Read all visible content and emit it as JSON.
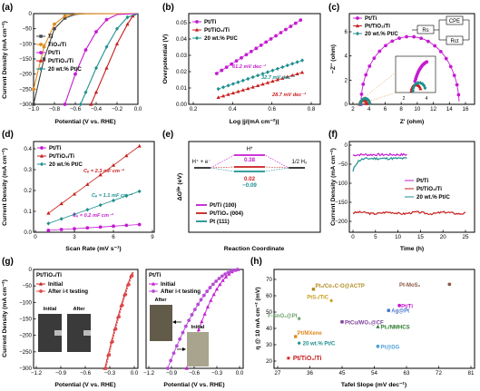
{
  "colors": {
    "pt": "#c51bd1",
    "pttio2": "#c81e1e",
    "ptc": "#1f8f8f",
    "ti": "#444444",
    "tio2": "#e08a1e",
    "ptri": "#b84ad6"
  },
  "panels": {
    "a": {
      "label": "(a)",
      "xlabel": "Potential (V vs. RHE)",
      "ylabel": "Current Density (mA cm⁻²)",
      "xticks": [
        "−1.0",
        "−0.8",
        "−0.6",
        "−0.4",
        "−0.2",
        "0.0"
      ],
      "yticks": [
        "0",
        "−50",
        "−100",
        "−150",
        "−200",
        "−250",
        "−300"
      ],
      "legend": [
        "Ti",
        "TiO₂/Ti",
        "Pt/Ti",
        "Pt/TiO₂/Ti",
        "20 wt.% Pt/C"
      ]
    },
    "b": {
      "label": "(b)",
      "xlabel": "Log |j/(mA cm⁻²)|",
      "ylabel": "Overpotential (V)",
      "xticks": [
        "0.2",
        "0.4",
        "0.6",
        "0.8"
      ],
      "yticks": [
        "0.00",
        "0.01",
        "0.02",
        "0.03",
        "0.04",
        "0.05"
      ],
      "legend": [
        "Pt/Ti",
        "Pt/TiO₂/Ti",
        "20 wt.% Pt/C"
      ],
      "annotations": [
        "61.2 mV dec⁻¹",
        "32.7 mV dec⁻¹",
        "28.7 mV dec⁻¹"
      ]
    },
    "c": {
      "label": "(c)",
      "xlabel": "Z' (ohm)",
      "ylabel": "−Z'' (ohm)",
      "xticks": [
        "2",
        "4",
        "6",
        "8",
        "10",
        "12",
        "14",
        "16"
      ],
      "yticks": [
        "0",
        "2",
        "4",
        "6"
      ],
      "legend": [
        "Pt/Ti",
        "Pt/TiO₂/Ti",
        "20 wt.% Pt/C"
      ],
      "circuit": [
        "Rs",
        "CPE",
        "Rct"
      ],
      "inset_xticks": [
        "2",
        "4"
      ]
    },
    "d": {
      "label": "(d)",
      "xlabel": "Scan Rate (mV s⁻¹)",
      "ylabel": "Current Density (mA cm⁻²)",
      "xticks": [
        "0",
        "3",
        "6",
        "9"
      ],
      "yticks": [
        "0.0",
        "0.1",
        "0.2",
        "0.3",
        "0.4"
      ],
      "legend": [
        "Pt/Ti",
        "Pt/TiO₂/Ti",
        "20 wt.% Pt/C"
      ],
      "annotations": [
        "Cₑ = 2.3 mF cm⁻²",
        "Cₑ = 1.1 mF cm⁻²",
        "Cₑ = 0.2 mF cm⁻²"
      ]
    },
    "e": {
      "label": "(e)",
      "xlabel": "Reaction Coordinate",
      "ylabel": "ΔGᴴ* (eV)",
      "labels": {
        "hplus": "H⁺ + e⁻",
        "hstar": "H*",
        "half": "1/2 H₂"
      },
      "values": [
        "0.38",
        "0.02",
        "−0.09"
      ],
      "legend": [
        "Pt/Ti (100)",
        "Pt/TiO₂ (004)",
        "Pt (111)"
      ]
    },
    "f": {
      "label": "(f)",
      "xlabel": "Time (h)",
      "ylabel": "Current Density (mA cm⁻²)",
      "xticks": [
        "0",
        "5",
        "10",
        "15",
        "20",
        "25"
      ],
      "yticks": [
        "0",
        "−50",
        "−100",
        "−150",
        "−200"
      ],
      "legend": [
        "Pt/Ti",
        "Pt/TiO₂/Ti",
        "20 wt.% Pt/C"
      ]
    },
    "g": {
      "label": "(g)",
      "xlabel": "Potential (V vs. RHE)",
      "ylabel": "Current Density (mA cm⁻²)",
      "left": {
        "title": "Pt/TiO₂/Ti",
        "legend": [
          "Initial",
          "After i-t testing"
        ],
        "photos": [
          "Initial",
          "After"
        ],
        "xticks": [
          "−1.2",
          "−0.9",
          "−0.6",
          "−0.3",
          "0.0"
        ]
      },
      "right": {
        "title": "Pt/Ti",
        "legend": [
          "Initial",
          "After i-t testing"
        ],
        "photos": [
          "After",
          "Initial"
        ],
        "xticks": [
          "−1.2",
          "−0.9",
          "−0.6",
          "−0.3",
          "0.0"
        ]
      },
      "yticks": [
        "0",
        "−50",
        "−100",
        "−150",
        "−200",
        "−250",
        "−300"
      ]
    },
    "h": {
      "label": "(h)",
      "xlabel": "Tafel Slope (mV dec⁻¹)",
      "ylabel": "η @ 10 mA cm⁻² (mV)",
      "xticks": [
        "27",
        "36",
        "45",
        "54",
        "63",
        "72",
        "81"
      ],
      "yticks": [
        "20",
        "30",
        "40",
        "50",
        "60",
        "70"
      ],
      "labels": [
        "Pt-MoS₂",
        "Pt₆/Co₄C-O@ACTP",
        "PtS₂/TiC",
        "Pt/Ti",
        "Ag@Pt",
        "F-SnO₂@Pt",
        "PtCu/WO₃@CF",
        "Pt₁/NMHCS",
        "Pt/MXene",
        "20 wt.% Pt/C",
        "Pt@DG",
        "Pt/TiO₂/Ti"
      ]
    }
  },
  "chart_data": [
    {
      "type": "line",
      "title": "",
      "xlabel": "Potential (V vs. RHE)",
      "ylabel": "Current Density (mA cm⁻²)",
      "xlim": [
        -1.0,
        0.0
      ],
      "ylim": [
        -300,
        0
      ],
      "series": [
        {
          "name": "Ti",
          "x": [
            -1.0,
            -0.9,
            -0.8,
            -0.7,
            -0.6,
            -0.5,
            -0.3,
            0
          ],
          "y": [
            -300,
            -150,
            -50,
            -15,
            -3,
            0,
            0,
            0
          ]
        },
        {
          "name": "TiO₂/Ti",
          "x": [
            -1.0,
            -0.9,
            -0.8,
            -0.7,
            -0.6,
            0
          ],
          "y": [
            -250,
            -110,
            -35,
            -8,
            -1,
            0
          ]
        },
        {
          "name": "Pt/Ti",
          "x": [
            -0.7,
            -0.6,
            -0.5,
            -0.4,
            -0.3,
            -0.2,
            0
          ],
          "y": [
            -300,
            -200,
            -120,
            -60,
            -20,
            -3,
            0
          ]
        },
        {
          "name": "Pt/TiO₂/Ti",
          "x": [
            -0.45,
            -0.4,
            -0.3,
            -0.2,
            -0.1,
            -0.05,
            0
          ],
          "y": [
            -300,
            -260,
            -180,
            -100,
            -35,
            -8,
            0
          ]
        },
        {
          "name": "20 wt.% Pt/C",
          "x": [
            -0.55,
            -0.5,
            -0.4,
            -0.3,
            -0.2,
            -0.1,
            0
          ],
          "y": [
            -300,
            -260,
            -180,
            -110,
            -50,
            -12,
            0
          ]
        }
      ]
    },
    {
      "type": "scatter",
      "title": "",
      "xlabel": "Log |j/(mA cm⁻²)|",
      "ylabel": "Overpotential (V)",
      "xlim": [
        0.2,
        0.9
      ],
      "ylim": [
        0,
        0.05
      ],
      "series": [
        {
          "name": "Pt/Ti",
          "slope_mV_dec": 61.2
        },
        {
          "name": "Pt/TiO₂/Ti",
          "slope_mV_dec": 28.7
        },
        {
          "name": "20 wt.% Pt/C",
          "slope_mV_dec": 32.7
        }
      ]
    },
    {
      "type": "scatter",
      "title": "",
      "xlabel": "Z' (ohm)",
      "ylabel": "−Z'' (ohm)",
      "xlim": [
        2,
        16
      ],
      "ylim": [
        0,
        7
      ]
    },
    {
      "type": "scatter",
      "title": "",
      "xlabel": "Scan Rate (mV s⁻¹)",
      "ylabel": "Current Density (mA cm⁻²)",
      "xlim": [
        0,
        9
      ],
      "ylim": [
        0,
        0.4
      ],
      "series": [
        {
          "name": "Pt/Ti",
          "Cdl_mF_cm2": 0.2
        },
        {
          "name": "Pt/TiO₂/Ti",
          "Cdl_mF_cm2": 2.3
        },
        {
          "name": "20 wt.% Pt/C",
          "Cdl_mF_cm2": 1.1
        }
      ]
    },
    {
      "type": "line",
      "title": "",
      "xlabel": "Reaction Coordinate",
      "ylabel": "ΔGᴴ* (eV)",
      "series": [
        {
          "name": "Pt/Ti (100)",
          "y": [
            0,
            0.38,
            0
          ]
        },
        {
          "name": "Pt/TiO₂ (004)",
          "y": [
            0,
            0.02,
            0
          ]
        },
        {
          "name": "Pt (111)",
          "y": [
            0,
            -0.09,
            0
          ]
        }
      ]
    },
    {
      "type": "line",
      "title": "",
      "xlabel": "Time (h)",
      "ylabel": "Current Density (mA cm⁻²)",
      "xlim": [
        0,
        25
      ],
      "ylim": [
        -200,
        0
      ]
    },
    {
      "type": "line",
      "title": "",
      "xlabel": "Potential (V vs. RHE)",
      "ylabel": "Current Density (mA cm⁻²)"
    },
    {
      "type": "scatter",
      "title": "",
      "xlabel": "Tafel Slope (mV dec⁻¹)",
      "ylabel": "η @ 10 mA cm⁻² (mV)",
      "xlim": [
        27,
        81
      ],
      "ylim": [
        20,
        70
      ]
    }
  ]
}
